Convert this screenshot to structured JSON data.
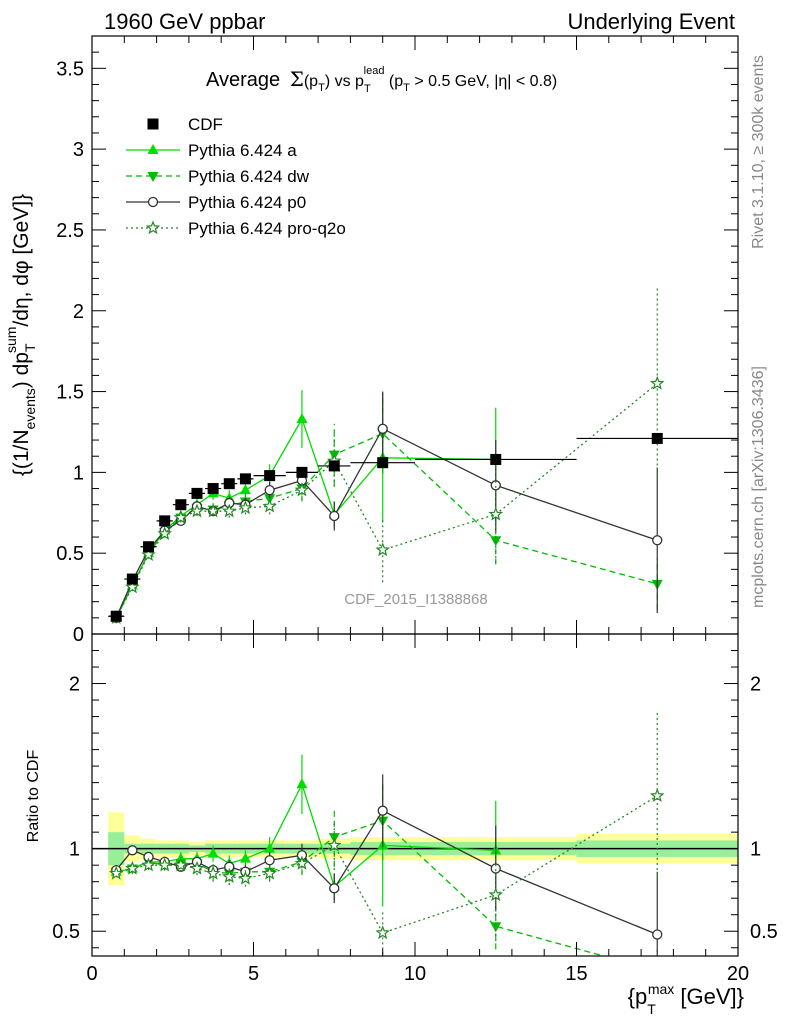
{
  "header": {
    "left": "1960 GeV ppbar",
    "right": "Underlying Event"
  },
  "side_labels": {
    "rivet": "Rivet 3.1.10, ≥ 300k events",
    "mcplots": "mcplots.cern.ch [arXiv:1306.3436]"
  },
  "chart_data": [
    {
      "type": "scatter",
      "panel": "main",
      "title": "Average Σ(p_T) vs p_T^lead (p_T > 0.5 GeV, |η| < 0.8)",
      "title_parts": {
        "a": "Average",
        "sigma": "Σ",
        "pT_open": "(p",
        "T": "T",
        "close": ")",
        "vs": " vs p",
        "lead": "lead",
        "tail1": " (p",
        "tail2": " > 0.5 GeV, |η| < 0.8)"
      },
      "ylabel": "{(1/N_events) dp_T^sum/dη, dφ [GeV]}",
      "ylabel_parts": {
        "p1": "{(1/N",
        "events": "events",
        "p2": ") dp",
        "sum": "sum",
        "T": "T",
        "p3": "/dη, dφ [GeV]}"
      },
      "watermark": "CDF_2015_I1388868",
      "xlim": [
        0,
        20
      ],
      "ylim": [
        0,
        3.7
      ],
      "x_ticks": [
        0,
        5,
        10,
        15,
        20
      ],
      "y_ticks": [
        0,
        0.5,
        1,
        1.5,
        2,
        2.5,
        3,
        3.5
      ],
      "y_tick_labels": [
        "0",
        "0.5",
        "1",
        "1.5",
        "2",
        "2.5",
        "3",
        "3.5"
      ],
      "legend_position": "top-left",
      "series": [
        {
          "name": "CDF",
          "color": "#000000",
          "marker": "square",
          "x": [
            0.75,
            1.25,
            1.75,
            2.25,
            2.75,
            3.25,
            3.75,
            4.25,
            4.75,
            5.5,
            6.5,
            7.5,
            9.0,
            12.5,
            17.5
          ],
          "y": [
            0.11,
            0.34,
            0.54,
            0.7,
            0.8,
            0.87,
            0.9,
            0.93,
            0.96,
            0.98,
            1.0,
            1.04,
            1.06,
            1.08,
            1.21
          ],
          "yerr": [
            0.01,
            0.01,
            0.01,
            0.01,
            0.01,
            0.01,
            0.01,
            0.01,
            0.01,
            0.01,
            0.01,
            0.01,
            0.01,
            0.02,
            0.02
          ],
          "xerr": [
            0.25,
            0.25,
            0.25,
            0.25,
            0.25,
            0.25,
            0.25,
            0.25,
            0.25,
            0.5,
            0.5,
            0.5,
            1.0,
            2.5,
            2.5
          ]
        },
        {
          "name": "Pythia 6.424 a",
          "color": "#00dd00",
          "marker": "triangle-up",
          "line": "solid",
          "x": [
            0.75,
            1.25,
            1.75,
            2.25,
            2.75,
            3.25,
            3.75,
            4.25,
            4.75,
            5.5,
            6.5,
            7.5,
            9.0,
            12.5
          ],
          "y": [
            0.1,
            0.3,
            0.5,
            0.64,
            0.73,
            0.8,
            0.87,
            0.84,
            0.89,
            0.98,
            1.33,
            0.74,
            1.09,
            1.08
          ],
          "yerr": [
            0.01,
            0.01,
            0.02,
            0.03,
            0.03,
            0.04,
            0.04,
            0.05,
            0.05,
            0.07,
            0.18,
            0.08,
            0.4,
            0.32
          ]
        },
        {
          "name": "Pythia 6.424 dw",
          "color": "#00bb00",
          "marker": "triangle-down",
          "line": "dashed",
          "x": [
            0.75,
            1.25,
            1.75,
            2.25,
            2.75,
            3.25,
            3.75,
            4.25,
            4.75,
            5.5,
            6.5,
            7.5,
            9.0,
            12.5,
            17.5
          ],
          "y": [
            0.1,
            0.3,
            0.5,
            0.63,
            0.72,
            0.78,
            0.77,
            0.79,
            0.82,
            0.84,
            0.9,
            1.11,
            1.24,
            0.58,
            0.31
          ],
          "yerr": [
            0.01,
            0.01,
            0.02,
            0.02,
            0.03,
            0.03,
            0.04,
            0.04,
            0.05,
            0.05,
            0.08,
            0.19,
            0.25,
            0.15,
            0.16
          ]
        },
        {
          "name": "Pythia 6.424 p0",
          "color": "#333333",
          "marker": "circle-open",
          "line": "solid",
          "x": [
            0.75,
            1.25,
            1.75,
            2.25,
            2.75,
            3.25,
            3.75,
            4.25,
            4.75,
            5.5,
            6.5,
            7.5,
            9.0,
            12.5,
            17.5
          ],
          "y": [
            0.1,
            0.33,
            0.52,
            0.64,
            0.7,
            0.79,
            0.76,
            0.81,
            0.8,
            0.89,
            0.95,
            0.73,
            1.27,
            0.92,
            0.58
          ],
          "yerr": [
            0.01,
            0.01,
            0.02,
            0.02,
            0.03,
            0.03,
            0.03,
            0.04,
            0.04,
            0.05,
            0.07,
            0.09,
            0.23,
            0.28,
            0.45
          ]
        },
        {
          "name": "Pythia 6.424 pro-q2o",
          "color": "#228822",
          "marker": "star-open",
          "line": "dotted",
          "x": [
            0.75,
            1.25,
            1.75,
            2.25,
            2.75,
            3.25,
            3.75,
            4.25,
            4.75,
            5.5,
            6.5,
            7.5,
            9.0,
            12.5,
            17.5
          ],
          "y": [
            0.1,
            0.29,
            0.49,
            0.62,
            0.72,
            0.76,
            0.76,
            0.76,
            0.78,
            0.79,
            0.89,
            1.07,
            0.52,
            0.74,
            1.55
          ],
          "yerr": [
            0.01,
            0.01,
            0.02,
            0.02,
            0.03,
            0.03,
            0.03,
            0.04,
            0.04,
            0.05,
            0.06,
            0.16,
            0.2,
            0.3,
            0.6
          ]
        }
      ]
    },
    {
      "type": "scatter",
      "panel": "ratio",
      "title": "",
      "ylabel": "Ratio to CDF",
      "xlabel": "{p_T^max [GeV]}",
      "xlabel_parts": {
        "a": "{p",
        "max": "max",
        "T": "T",
        "b": " [GeV]}"
      },
      "xlim": [
        0,
        20
      ],
      "ylim": [
        0.35,
        2.3
      ],
      "x_ticks": [
        0,
        5,
        10,
        15,
        20
      ],
      "x_tick_labels": [
        "0",
        "5",
        "10",
        "15",
        "20"
      ],
      "y_ticks": [
        0.5,
        1,
        2
      ],
      "y_tick_labels": [
        "0.5",
        "1",
        "2"
      ],
      "band": {
        "x_edges": [
          0.5,
          1.0,
          1.5,
          2.0,
          2.5,
          3.0,
          3.5,
          4.0,
          4.5,
          5.0,
          6.0,
          7.0,
          8.0,
          10.0,
          15.0,
          20.0
        ],
        "outer": [
          0.22,
          0.08,
          0.06,
          0.05,
          0.05,
          0.04,
          0.05,
          0.05,
          0.05,
          0.05,
          0.05,
          0.06,
          0.07,
          0.07,
          0.09
        ],
        "inner": [
          0.1,
          0.03,
          0.03,
          0.03,
          0.03,
          0.02,
          0.03,
          0.03,
          0.03,
          0.03,
          0.03,
          0.03,
          0.04,
          0.04,
          0.05
        ],
        "outer_color": "#ffff99",
        "inner_color": "#99ee99"
      },
      "series": [
        {
          "name": "Pythia 6.424 a",
          "x": [
            0.75,
            1.25,
            1.75,
            2.25,
            2.75,
            3.25,
            3.75,
            4.25,
            4.75,
            5.5,
            6.5,
            7.5,
            9.0,
            12.5
          ],
          "y": [
            0.86,
            0.88,
            0.92,
            0.92,
            0.94,
            0.94,
            0.97,
            0.91,
            0.94,
            1.0,
            1.39,
            0.77,
            1.02,
            0.99
          ],
          "yerr": [
            0.02,
            0.02,
            0.03,
            0.03,
            0.04,
            0.04,
            0.05,
            0.05,
            0.05,
            0.07,
            0.18,
            0.08,
            0.37,
            0.3
          ]
        },
        {
          "name": "Pythia 6.424 dw",
          "x": [
            0.75,
            1.25,
            1.75,
            2.25,
            2.75,
            3.25,
            3.75,
            4.25,
            4.75,
            5.5,
            6.5,
            7.5,
            9.0,
            12.5,
            17.5
          ],
          "y": [
            0.86,
            0.88,
            0.92,
            0.9,
            0.91,
            0.91,
            0.86,
            0.85,
            0.86,
            0.86,
            0.92,
            1.07,
            1.17,
            0.53,
            0.26
          ],
          "yerr": [
            0.02,
            0.02,
            0.03,
            0.03,
            0.04,
            0.04,
            0.05,
            0.05,
            0.05,
            0.05,
            0.08,
            0.18,
            0.24,
            0.14,
            0.13
          ]
        },
        {
          "name": "Pythia 6.424 p0",
          "x": [
            0.75,
            1.25,
            1.75,
            2.25,
            2.75,
            3.25,
            3.75,
            4.25,
            4.75,
            5.5,
            6.5,
            7.5,
            9.0,
            12.5,
            17.5
          ],
          "y": [
            0.87,
            0.99,
            0.95,
            0.92,
            0.89,
            0.92,
            0.87,
            0.89,
            0.86,
            0.93,
            0.96,
            0.76,
            1.23,
            0.88,
            0.48
          ],
          "yerr": [
            0.02,
            0.02,
            0.02,
            0.02,
            0.03,
            0.03,
            0.03,
            0.04,
            0.04,
            0.05,
            0.07,
            0.09,
            0.22,
            0.26,
            0.38
          ]
        },
        {
          "name": "Pythia 6.424 pro-q2o",
          "x": [
            0.75,
            1.25,
            1.75,
            2.25,
            2.75,
            3.25,
            3.75,
            4.25,
            4.75,
            5.5,
            6.5,
            7.5,
            9.0,
            12.5,
            17.5
          ],
          "y": [
            0.85,
            0.88,
            0.9,
            0.9,
            0.9,
            0.88,
            0.85,
            0.83,
            0.82,
            0.85,
            0.91,
            1.02,
            0.49,
            0.72,
            1.32
          ],
          "yerr": [
            0.02,
            0.02,
            0.03,
            0.03,
            0.04,
            0.04,
            0.05,
            0.05,
            0.05,
            0.05,
            0.06,
            0.15,
            0.13,
            0.28,
            0.51
          ]
        }
      ]
    }
  ]
}
